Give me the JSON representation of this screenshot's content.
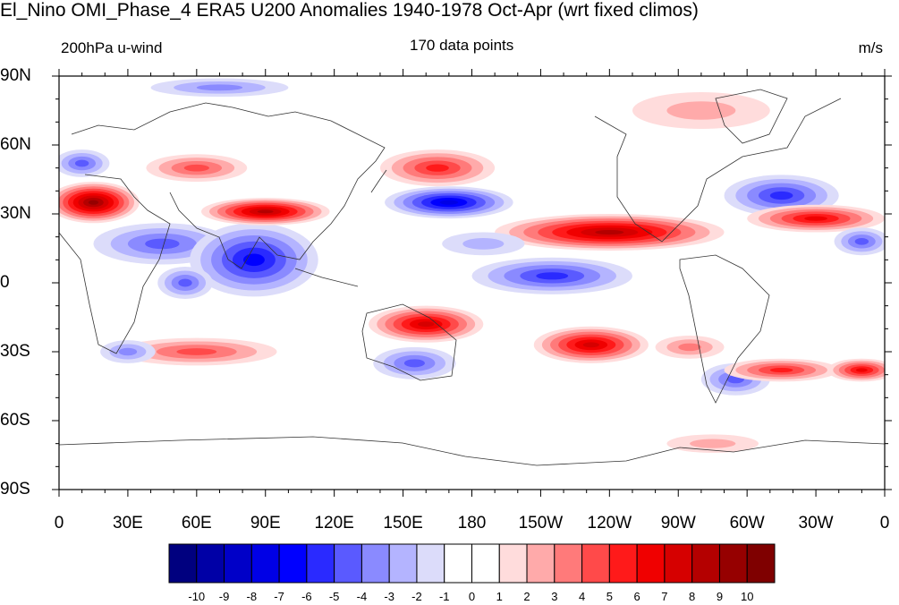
{
  "title": "El_Nino OMI_Phase_4 ERA5 U200 Anomalies 1940-1978 Oct-Apr (wrt fixed climos)",
  "left_string": "200hPa u-wind",
  "center_string": "170 data points",
  "right_string": "m/s",
  "lat_labels": [
    "90N",
    "60N",
    "30N",
    "0",
    "30S",
    "60S",
    "90S"
  ],
  "lon_labels": [
    "0",
    "30E",
    "60E",
    "90E",
    "120E",
    "150E",
    "180",
    "150W",
    "120W",
    "90W",
    "60W",
    "30W",
    "0"
  ],
  "colorbar": {
    "labels": [
      "-10",
      "-9",
      "-8",
      "-7",
      "-6",
      "-5",
      "-4",
      "-3",
      "-2",
      "-1",
      "0",
      "1",
      "2",
      "3",
      "4",
      "5",
      "6",
      "7",
      "8",
      "9",
      "10"
    ],
    "colors": [
      "#00007f",
      "#0000a6",
      "#0000c8",
      "#0000e6",
      "#0000ff",
      "#2a2aff",
      "#5a5aff",
      "#8a8aff",
      "#b4b4ff",
      "#dcdcfa",
      "#ffffff",
      "#ffffff",
      "#ffdcdc",
      "#ffaaaa",
      "#ff7a7a",
      "#ff4a4a",
      "#ff1a1a",
      "#f00000",
      "#d60000",
      "#b40000",
      "#960000",
      "#7f0000"
    ]
  },
  "map_data": {
    "projection": "cylindrical-equidistant",
    "lon_range": [
      0,
      360
    ],
    "lat_range": [
      -90,
      90
    ],
    "anomalies": [
      {
        "lon": 15,
        "lat": 35,
        "rx": 20,
        "ry": 9,
        "value": 9
      },
      {
        "lon": 10,
        "lat": 52,
        "rx": 12,
        "ry": 6,
        "value": -4
      },
      {
        "lon": 45,
        "lat": 17,
        "rx": 30,
        "ry": 9,
        "value": -4
      },
      {
        "lon": 85,
        "lat": 10,
        "rx": 28,
        "ry": 16,
        "value": -6
      },
      {
        "lon": 55,
        "lat": 0,
        "rx": 12,
        "ry": 7,
        "value": -4
      },
      {
        "lon": 60,
        "lat": 50,
        "rx": 22,
        "ry": 6,
        "value": 4
      },
      {
        "lon": 90,
        "lat": 31,
        "rx": 28,
        "ry": 6,
        "value": 8
      },
      {
        "lon": 165,
        "lat": 50,
        "rx": 25,
        "ry": 8,
        "value": 5
      },
      {
        "lon": 170,
        "lat": 35,
        "rx": 28,
        "ry": 7,
        "value": -7
      },
      {
        "lon": 70,
        "lat": 85,
        "rx": 30,
        "ry": 4,
        "value": -3
      },
      {
        "lon": 240,
        "lat": 22,
        "rx": 50,
        "ry": 8,
        "value": 8
      },
      {
        "lon": 215,
        "lat": 3,
        "rx": 35,
        "ry": 8,
        "value": -5
      },
      {
        "lon": 160,
        "lat": -18,
        "rx": 25,
        "ry": 8,
        "value": 7
      },
      {
        "lon": 232,
        "lat": -27,
        "rx": 25,
        "ry": 8,
        "value": 7
      },
      {
        "lon": 60,
        "lat": -30,
        "rx": 35,
        "ry": 6,
        "value": 4
      },
      {
        "lon": 155,
        "lat": -35,
        "rx": 18,
        "ry": 7,
        "value": -4
      },
      {
        "lon": 295,
        "lat": -42,
        "rx": 15,
        "ry": 7,
        "value": -4
      },
      {
        "lon": 315,
        "lat": -38,
        "rx": 25,
        "ry": 5,
        "value": 5
      },
      {
        "lon": 350,
        "lat": -38,
        "rx": 15,
        "ry": 5,
        "value": 6
      },
      {
        "lon": 315,
        "lat": 38,
        "rx": 25,
        "ry": 9,
        "value": -5
      },
      {
        "lon": 330,
        "lat": 28,
        "rx": 30,
        "ry": 6,
        "value": 6
      },
      {
        "lon": 350,
        "lat": 18,
        "rx": 12,
        "ry": 6,
        "value": -4
      },
      {
        "lon": 280,
        "lat": 75,
        "rx": 30,
        "ry": 8,
        "value": 2
      },
      {
        "lon": 185,
        "lat": 17,
        "rx": 18,
        "ry": 5,
        "value": -2
      },
      {
        "lon": 275,
        "lat": -28,
        "rx": 15,
        "ry": 5,
        "value": 3
      },
      {
        "lon": 285,
        "lat": -70,
        "rx": 20,
        "ry": 4,
        "value": 2
      },
      {
        "lon": 30,
        "lat": -30,
        "rx": 12,
        "ry": 5,
        "value": -3
      }
    ]
  }
}
